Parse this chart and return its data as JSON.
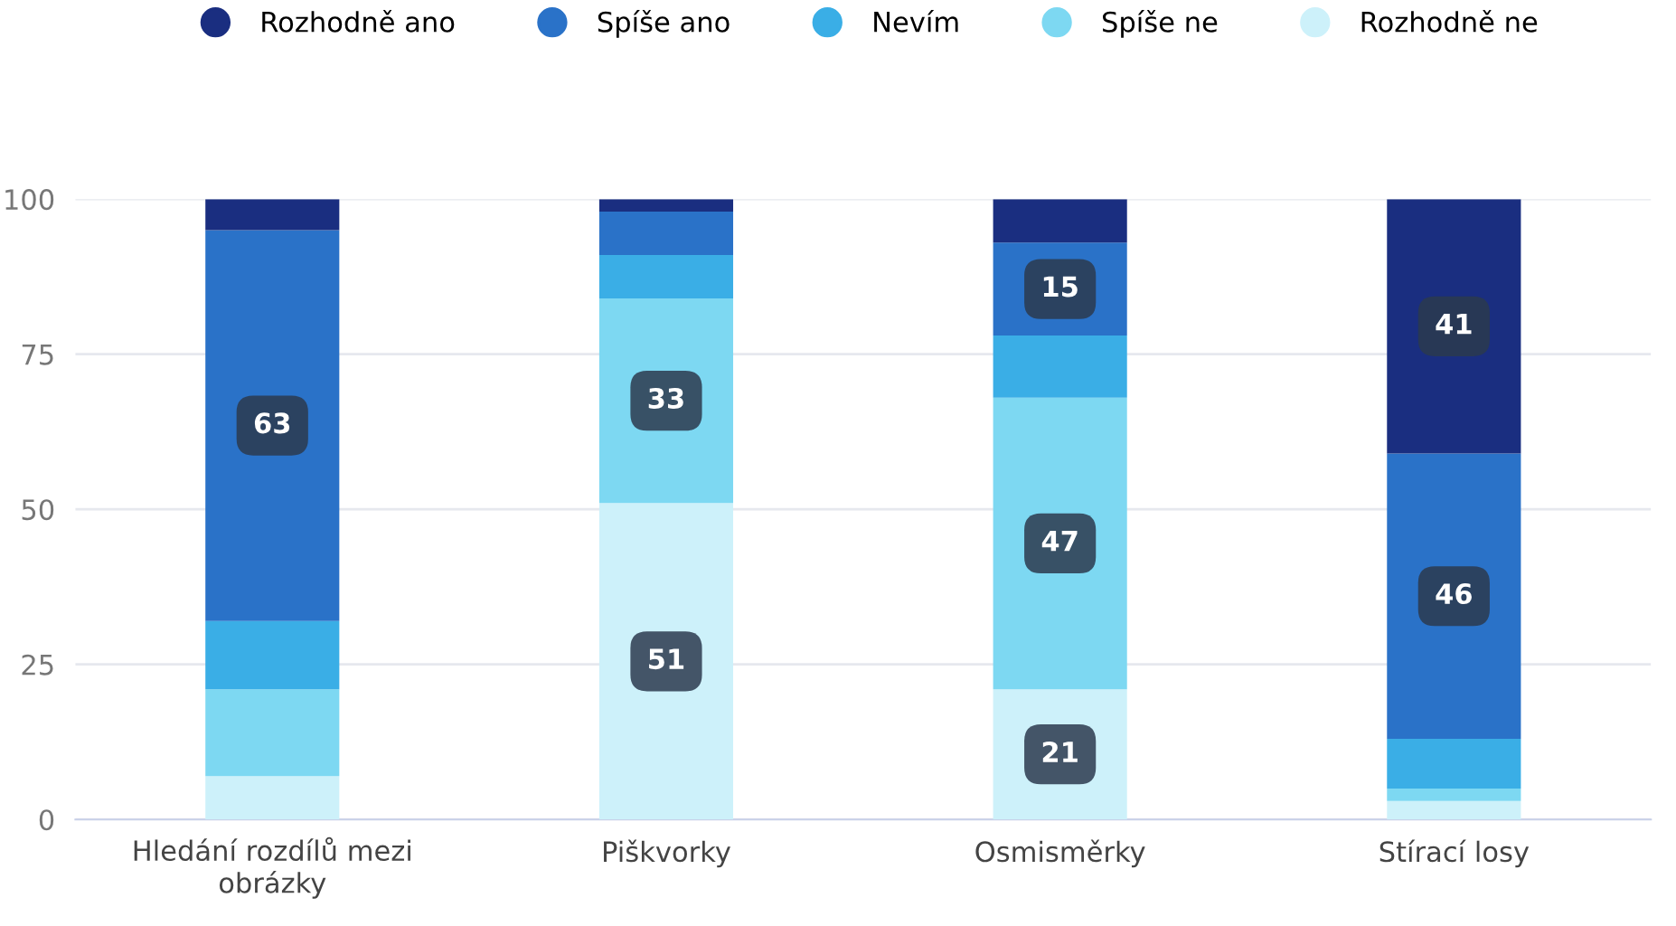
{
  "chart_data": {
    "type": "bar",
    "stacked": true,
    "categories": [
      "Hledání rozdílů mezi obrázky",
      "Piškvorky",
      "Osmisměrky",
      "Stírací losy"
    ],
    "series": [
      {
        "name": "Rozhodně ne",
        "color": "#cdf1fa",
        "values": [
          7,
          51,
          21,
          3
        ],
        "value_labels": [
          null,
          "51",
          "21",
          null
        ]
      },
      {
        "name": "Spíše ne",
        "color": "#7dd8f2",
        "values": [
          14,
          33,
          47,
          2
        ],
        "value_labels": [
          null,
          "33",
          "47",
          null
        ]
      },
      {
        "name": "Nevím",
        "color": "#3aaee6",
        "values": [
          11,
          7,
          10,
          8
        ],
        "value_labels": [
          null,
          null,
          null,
          null
        ]
      },
      {
        "name": "Spíše ano",
        "color": "#2a72c8",
        "values": [
          63,
          7,
          15,
          46
        ],
        "value_labels": [
          "63",
          null,
          "15",
          "46"
        ]
      },
      {
        "name": "Rozhodně ano",
        "color": "#1a2e80",
        "values": [
          5,
          2,
          7,
          41
        ],
        "value_labels": [
          null,
          null,
          null,
          "41"
        ]
      }
    ],
    "ylim": [
      0,
      100
    ],
    "yticks": [
      0,
      25,
      50,
      75,
      100
    ],
    "grid": "y",
    "legend": "top"
  }
}
